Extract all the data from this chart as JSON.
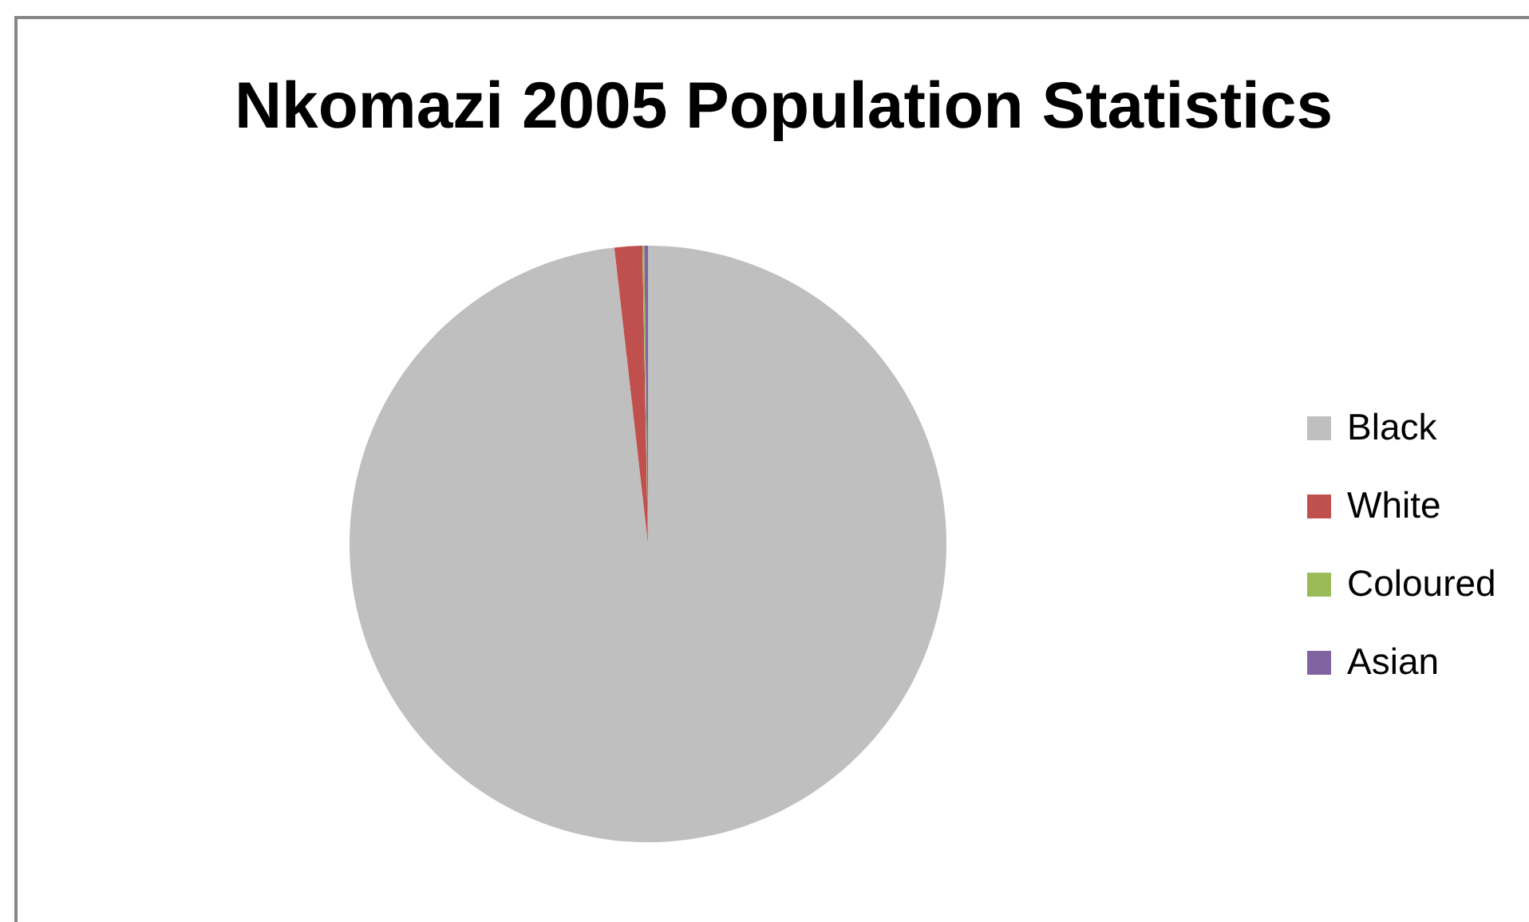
{
  "chart_data": {
    "type": "pie",
    "title": "Nkomazi 2005 Population Statistics",
    "categories": [
      "Black",
      "White",
      "Coloured",
      "Asian"
    ],
    "values": [
      98.2,
      1.5,
      0.1,
      0.2
    ],
    "colors": [
      "#bfbfbf",
      "#c0504d",
      "#9bbb59",
      "#8064a2"
    ],
    "legend": "right"
  }
}
